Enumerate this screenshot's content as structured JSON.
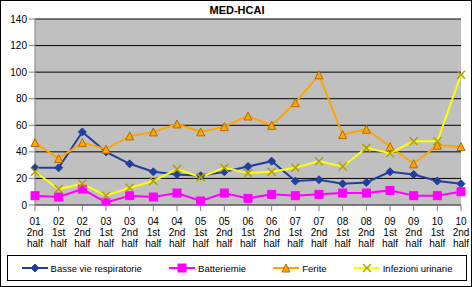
{
  "chart_data": {
    "type": "line",
    "title": "MED-HCAI",
    "categories": [
      "01 2nd half",
      "02 1st half",
      "02 2nd half",
      "03 1st half",
      "03 2nd half",
      "04 1st half",
      "04 2nd half",
      "05 1st half",
      "05 2nd half",
      "06 1st half",
      "06 2nd half",
      "07 1st half",
      "07 2nd half",
      "08 1st half",
      "08 2nd half",
      "09 1st half",
      "09 2nd half",
      "10 1st half",
      "10 2nd half"
    ],
    "series": [
      {
        "name": "Basse vie respiratorie",
        "color": "#2040a0",
        "marker": "diamond",
        "values": [
          28,
          28,
          55,
          40,
          31,
          25,
          23,
          22,
          25,
          29,
          33,
          18,
          19,
          16,
          17,
          25,
          23,
          18,
          16
        ]
      },
      {
        "name": "Batteriemie",
        "color": "#ff00ff",
        "marker": "square",
        "values": [
          7,
          6,
          12,
          2,
          7,
          6,
          9,
          3,
          9,
          5,
          8,
          7,
          8,
          9,
          9,
          11,
          7,
          7,
          10
        ]
      },
      {
        "name": "Ferite",
        "color": "#ffa500",
        "marker": "triangle",
        "values": [
          47,
          35,
          47,
          42,
          52,
          55,
          61,
          55,
          59,
          67,
          60,
          77,
          98,
          53,
          57,
          44,
          31,
          45,
          44
        ]
      },
      {
        "name": "Infezioni urinarie",
        "color": "#ffff00",
        "marker": "x",
        "values": [
          25,
          12,
          16,
          7,
          13,
          18,
          27,
          21,
          28,
          24,
          25,
          28,
          33,
          29,
          43,
          39,
          48,
          48,
          98
        ]
      }
    ],
    "ylim": [
      0,
      140
    ],
    "yticks": [
      0,
      20,
      40,
      60,
      80,
      100,
      120,
      140
    ],
    "grid": true,
    "legend": "bottom"
  }
}
